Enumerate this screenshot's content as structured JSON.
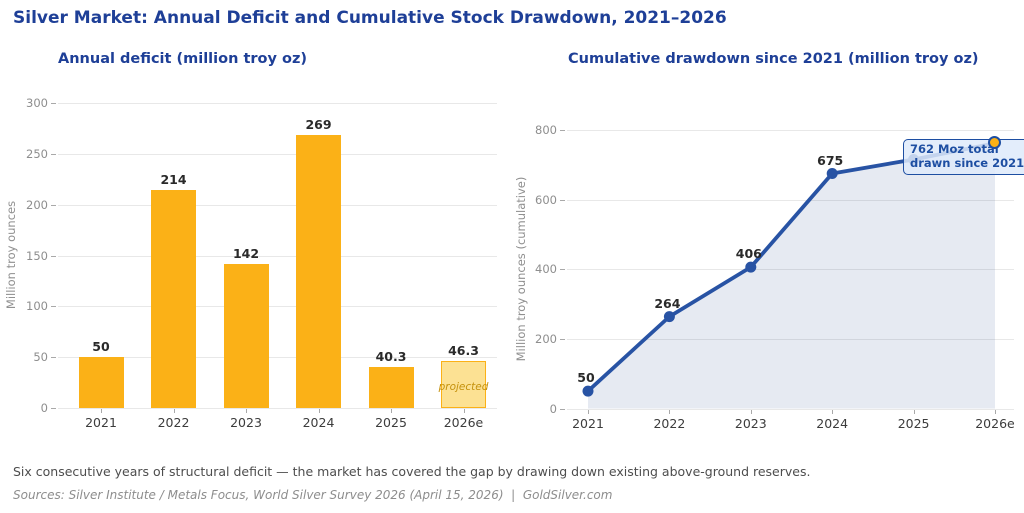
{
  "page": {
    "title": "Silver Market: Annual Deficit and Cumulative Stock Drawdown, 2021–2026",
    "footnote": "Six consecutive years of structural deficit — the market has covered the gap by drawing down existing above-ground reserves.",
    "sources": "Sources: Silver Institute / Metals Focus, World Silver Survey 2026 (April 15, 2026)  |  GoldSilver.com"
  },
  "colors": {
    "title_blue": "#1e3f97",
    "bar_orange": "#fbb117",
    "projected_fill": "#fce193",
    "line_blue": "#2853a4",
    "marker_gold": "#fbb117",
    "annotation_blue": "#1d4ea2",
    "area_fill": "rgba(47,84,150,0.12)",
    "gridline": "#e8e8e8"
  },
  "chart_data": [
    {
      "type": "bar",
      "title": "Annual deficit (million troy oz)",
      "ylabel": "Million troy ounces",
      "xlabel": "",
      "categories": [
        "2021",
        "2022",
        "2023",
        "2024",
        "2025",
        "2026e"
      ],
      "values": [
        50,
        214,
        142,
        269,
        40.3,
        46.3
      ],
      "value_labels": [
        "50",
        "214",
        "142",
        "269",
        "40.3",
        "46.3"
      ],
      "yticks": [
        0,
        50,
        100,
        150,
        200,
        250,
        300
      ],
      "ylim": [
        0,
        300
      ],
      "grid": true,
      "projected_index": 5,
      "projected_label": "projected"
    },
    {
      "type": "line",
      "title": "Cumulative drawdown since 2021 (million troy oz)",
      "ylabel": "Million troy ounces (cumulative)",
      "xlabel": "",
      "categories": [
        "2021",
        "2022",
        "2023",
        "2024",
        "2025",
        "2026e"
      ],
      "values": [
        50,
        264,
        406,
        675,
        715.3,
        762
      ],
      "point_labels": [
        "50",
        "264",
        "406",
        "675",
        "",
        ""
      ],
      "yticks": [
        0,
        200,
        400,
        600,
        800
      ],
      "ylim": [
        0,
        800
      ],
      "grid": true,
      "area_fill": true,
      "highlight_index": 5,
      "annotation": {
        "line1": "762 Moz total",
        "line2": "drawn since 2021"
      }
    }
  ]
}
